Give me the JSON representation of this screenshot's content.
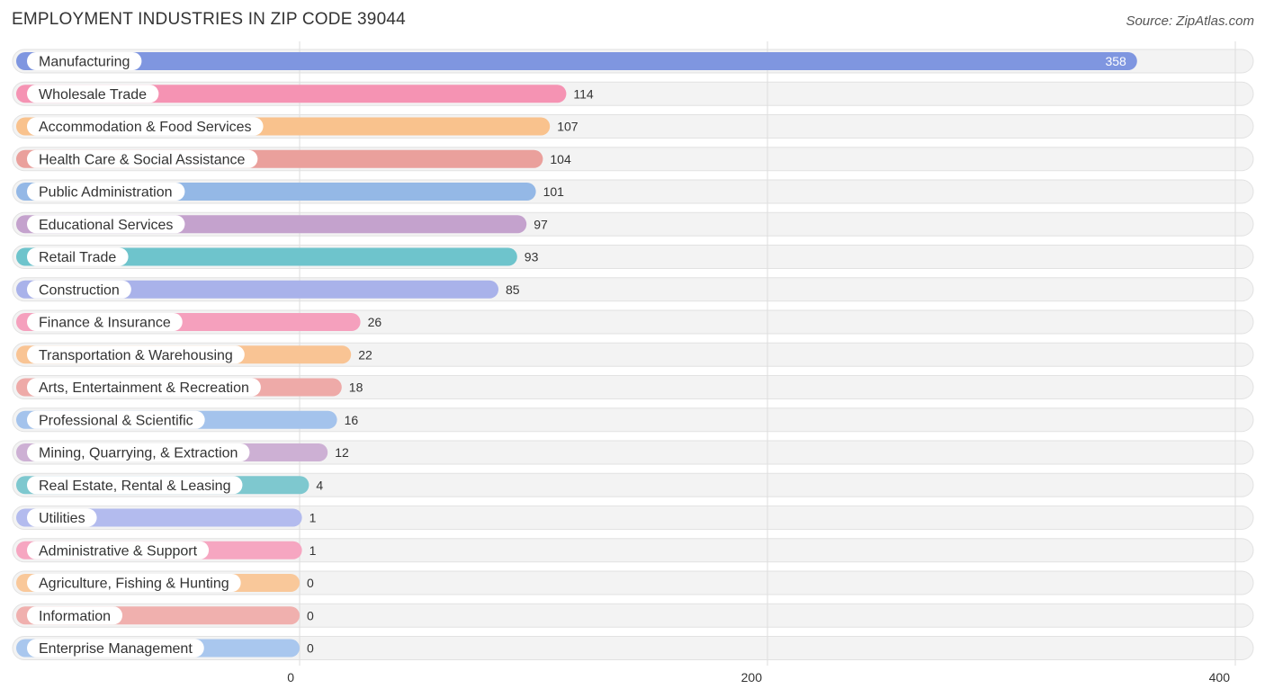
{
  "title": "EMPLOYMENT INDUSTRIES IN ZIP CODE 39044",
  "source": "Source: ZipAtlas.com",
  "chart_data": {
    "type": "bar",
    "orientation": "horizontal",
    "categories": [
      "Manufacturing",
      "Wholesale Trade",
      "Accommodation & Food Services",
      "Health Care & Social Assistance",
      "Public Administration",
      "Educational Services",
      "Retail Trade",
      "Construction",
      "Finance & Insurance",
      "Transportation & Warehousing",
      "Arts, Entertainment & Recreation",
      "Professional & Scientific",
      "Mining, Quarrying, & Extraction",
      "Real Estate, Rental & Leasing",
      "Utilities",
      "Administrative & Support",
      "Agriculture, Fishing & Hunting",
      "Information",
      "Enterprise Management"
    ],
    "values": [
      358,
      114,
      107,
      104,
      101,
      97,
      93,
      85,
      26,
      22,
      18,
      16,
      12,
      4,
      1,
      1,
      0,
      0,
      0
    ],
    "colors": [
      "#7f96e0",
      "#f593b3",
      "#f9c28d",
      "#eaa09c",
      "#94b8e6",
      "#c4a2cd",
      "#6ec4cc",
      "#a9b2ea",
      "#f5a0bd",
      "#f9c494",
      "#eeaaa8",
      "#a4c3ec",
      "#cdb0d4",
      "#7ec8cf",
      "#b3bbee",
      "#f6a6c1",
      "#f9c89a",
      "#f0b0ae",
      "#a9c7ee"
    ],
    "xlim": [
      0,
      400
    ],
    "xticks": [
      0,
      200,
      400
    ],
    "grid": true
  }
}
